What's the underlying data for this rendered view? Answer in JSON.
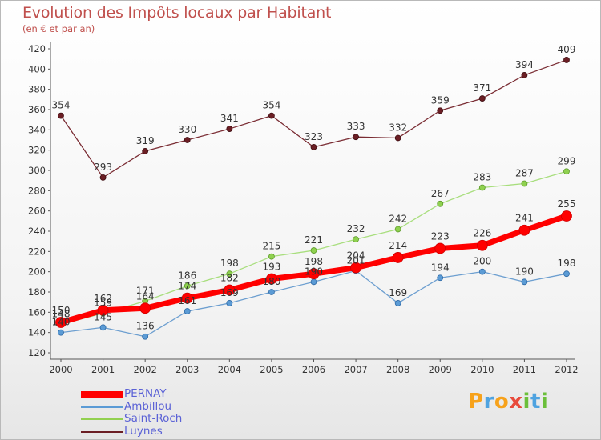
{
  "chart_data": {
    "type": "line",
    "title": "Evolution des Impôts locaux par Habitant",
    "subtitle": "(en € et par an)",
    "x": [
      "2000",
      "2001",
      "2002",
      "2003",
      "2004",
      "2005",
      "2006",
      "2007",
      "2008",
      "2009",
      "2010",
      "2011",
      "2012"
    ],
    "ylim": [
      120,
      420
    ],
    "yticks": [
      120,
      140,
      160,
      180,
      200,
      220,
      240,
      260,
      280,
      300,
      320,
      340,
      360,
      380,
      400,
      420
    ],
    "grid": false,
    "legend_position": "bottom-left",
    "series": [
      {
        "name": "PERNAY",
        "color": "#ff0000",
        "values": [
          150,
          162,
          164,
          174,
          182,
          193,
          198,
          204,
          214,
          223,
          226,
          241,
          255
        ]
      },
      {
        "name": "Ambillou",
        "color": "#5b9bd5",
        "values": [
          140,
          145,
          136,
          161,
          169,
          180,
          190,
          201,
          169,
          194,
          200,
          190,
          198
        ]
      },
      {
        "name": "Saint-Roch",
        "color": "#92d050",
        "values": [
          148,
          159,
          171,
          186,
          198,
          215,
          221,
          232,
          242,
          267,
          283,
          287,
          299
        ]
      },
      {
        "name": "Luynes",
        "color": "#6b1e24",
        "values": [
          354,
          293,
          319,
          330,
          341,
          354,
          323,
          333,
          332,
          359,
          371,
          394,
          409
        ]
      }
    ]
  },
  "logo": {
    "letters": [
      "P",
      "r",
      "o",
      "x",
      "i",
      "t",
      "i"
    ],
    "colors": [
      "#f7a21b",
      "#4fa3e0",
      "#f7a21b",
      "#e84b3c",
      "#6bbf3a",
      "#4fa3e0",
      "#6bbf3a"
    ]
  }
}
